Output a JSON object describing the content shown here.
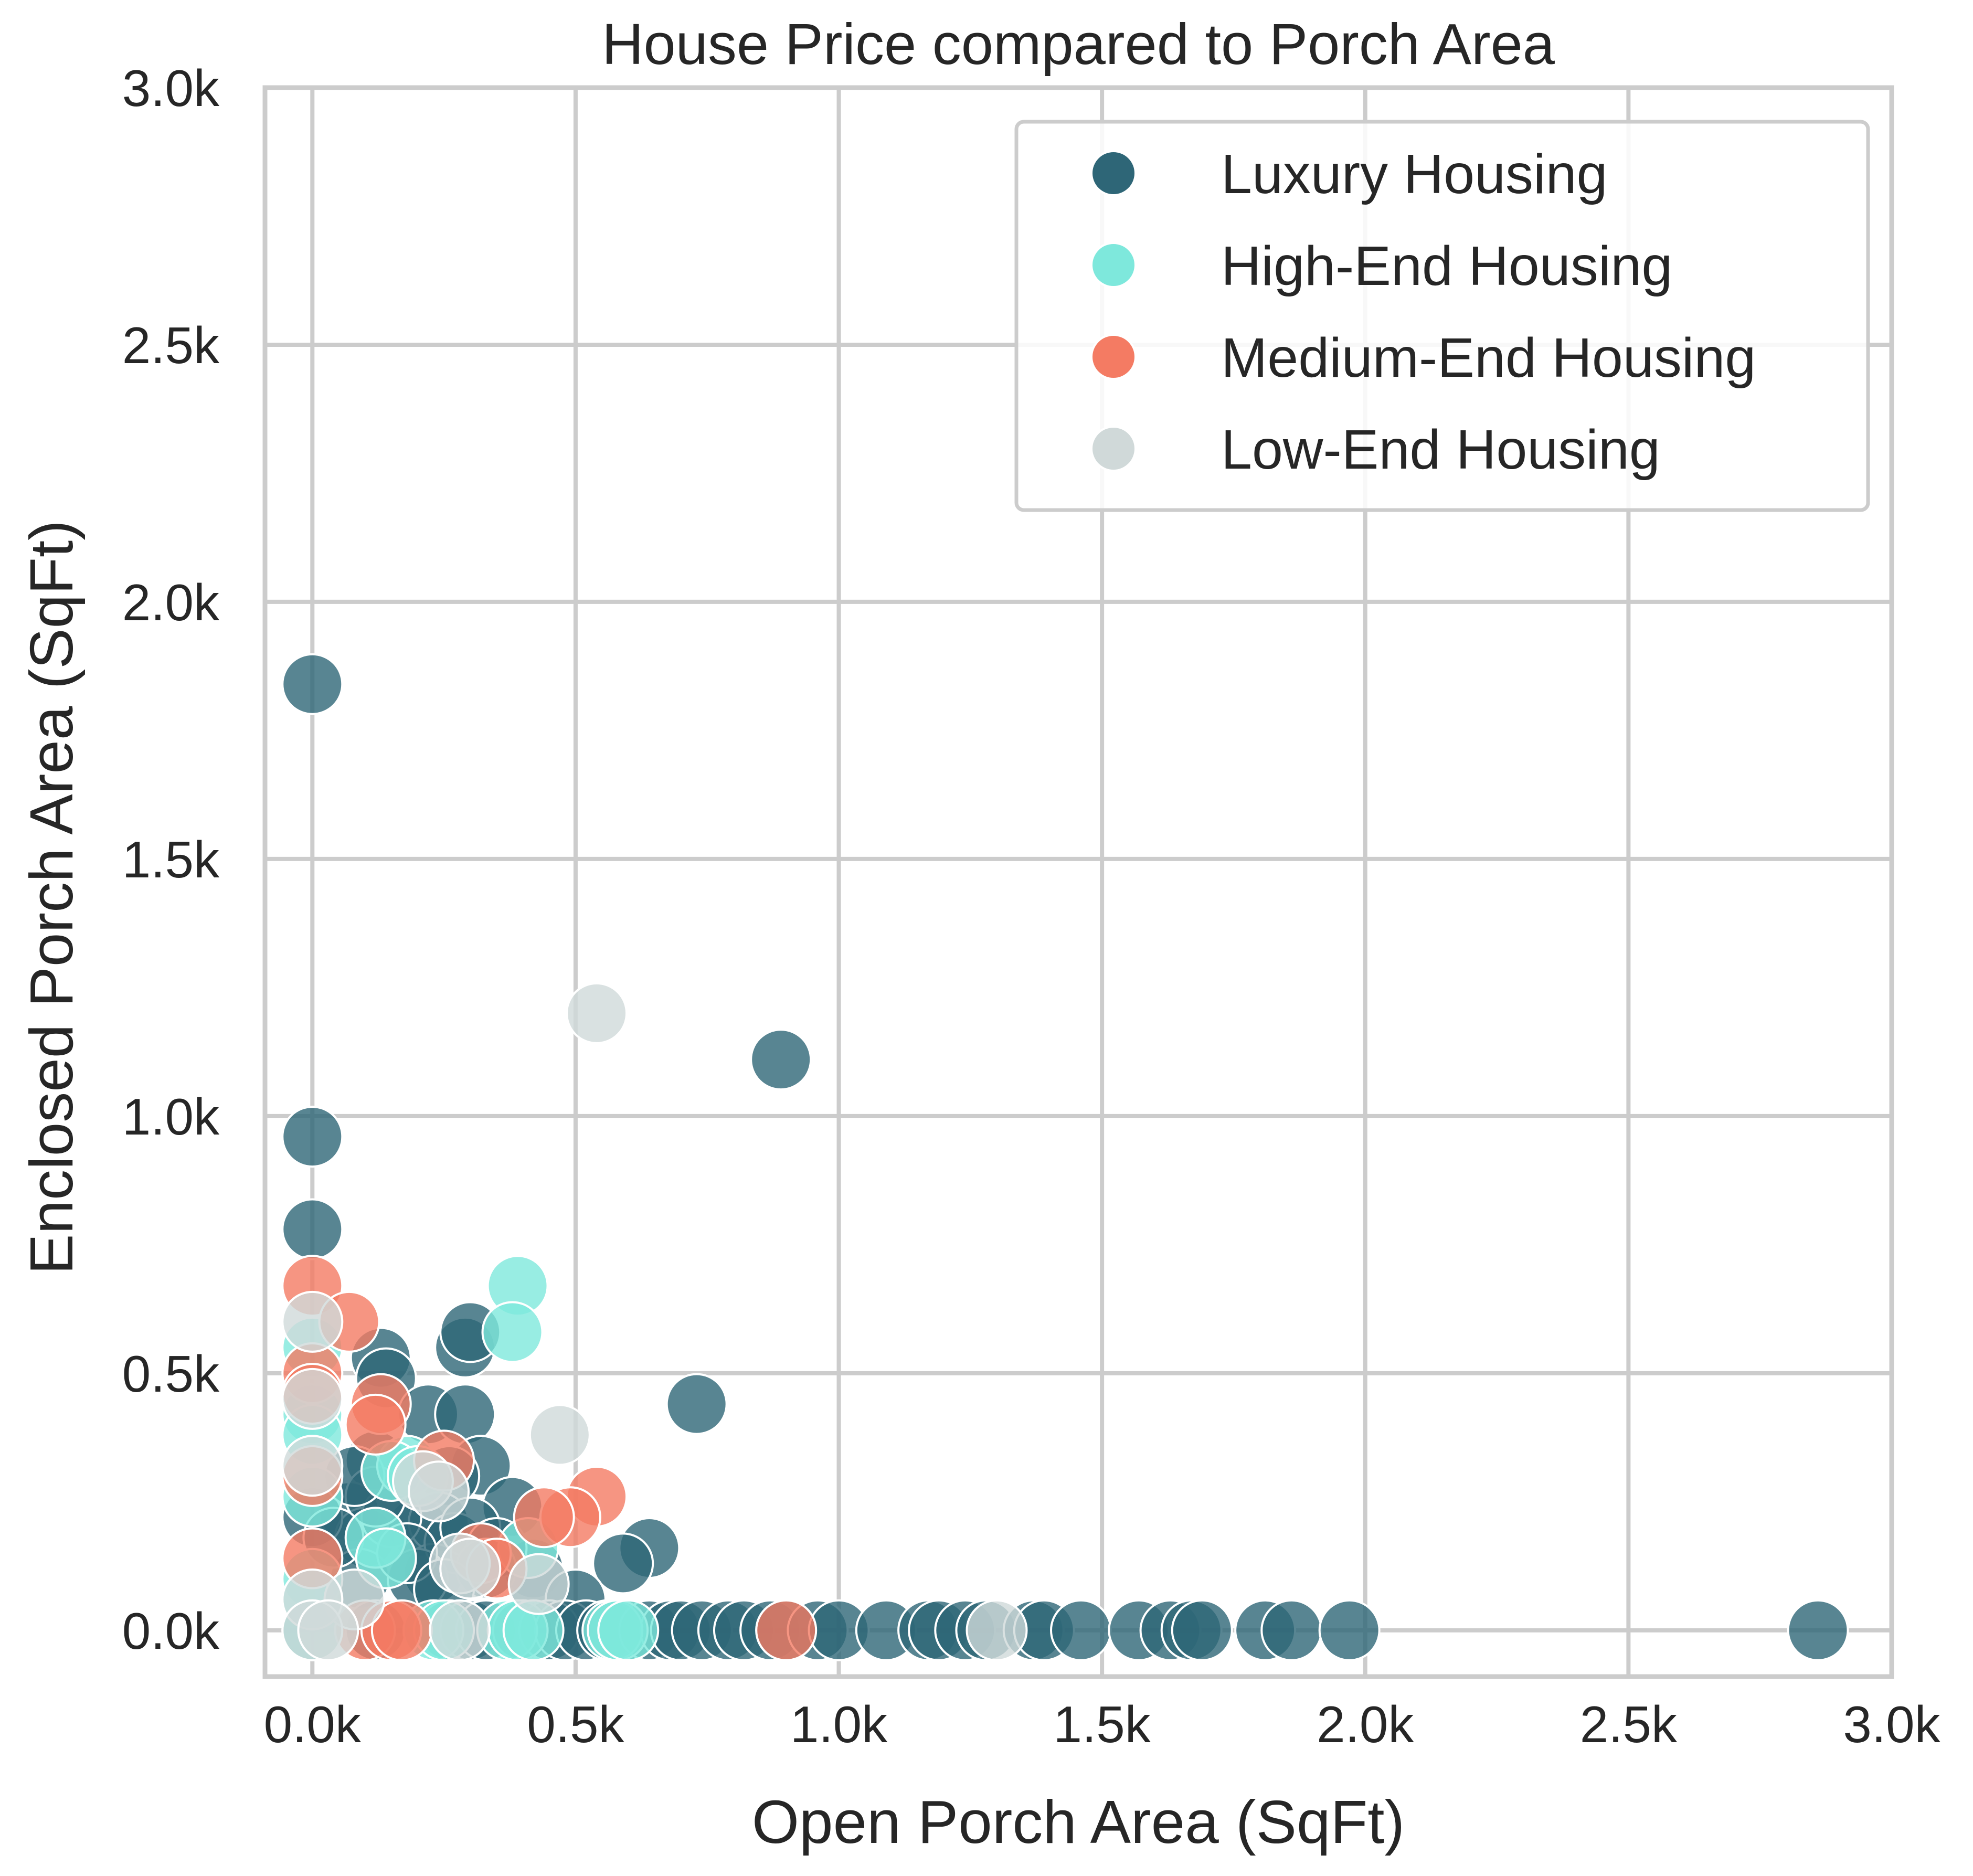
{
  "chart_data": {
    "type": "scatter",
    "title": "House Price compared to Porch Area",
    "xlabel": "Open Porch Area (SqFt)",
    "ylabel": "Enclosed Porch Area (SqFt)",
    "xlim": [
      -90,
      3000
    ],
    "ylim": [
      -90,
      3000
    ],
    "x_ticks": [
      0,
      500,
      1000,
      1500,
      2000,
      2500,
      3000
    ],
    "y_ticks": [
      0,
      500,
      1000,
      1500,
      2000,
      2500,
      3000
    ],
    "x_tick_labels": [
      "0.0k",
      "0.5k",
      "1.0k",
      "1.5k",
      "2.0k",
      "2.5k",
      "3.0k"
    ],
    "y_tick_labels": [
      "0.0k",
      "0.5k",
      "1.0k",
      "1.5k",
      "2.0k",
      "2.5k",
      "3.0k"
    ],
    "grid": true,
    "legend_position": "top-right",
    "series": [
      {
        "name": "Luxury Housing",
        "color": "#2e6677",
        "points": [
          [
            0,
            1840
          ],
          [
            0,
            960
          ],
          [
            0,
            780
          ],
          [
            890,
            1110
          ],
          [
            730,
            440
          ],
          [
            290,
            550
          ],
          [
            300,
            580
          ],
          [
            130,
            530
          ],
          [
            140,
            490
          ],
          [
            220,
            420
          ],
          [
            290,
            420
          ],
          [
            120,
            330
          ],
          [
            320,
            320
          ],
          [
            260,
            300
          ],
          [
            380,
            240
          ],
          [
            420,
            120
          ],
          [
            640,
            160
          ],
          [
            590,
            130
          ],
          [
            70,
            230
          ],
          [
            100,
            180
          ],
          [
            90,
            100
          ],
          [
            200,
            200
          ],
          [
            240,
            210
          ],
          [
            230,
            110
          ],
          [
            270,
            170
          ],
          [
            300,
            200
          ],
          [
            350,
            160
          ],
          [
            330,
            120
          ],
          [
            430,
            90
          ],
          [
            500,
            60
          ],
          [
            200,
            100
          ],
          [
            150,
            220
          ],
          [
            120,
            260
          ],
          [
            0,
            220
          ],
          [
            180,
            150
          ],
          [
            40,
            180
          ],
          [
            250,
            80
          ],
          [
            80,
            300
          ],
          [
            0,
            0
          ],
          [
            120,
            0
          ],
          [
            260,
            0
          ],
          [
            300,
            0
          ],
          [
            330,
            0
          ],
          [
            400,
            0
          ],
          [
            450,
            0
          ],
          [
            480,
            0
          ],
          [
            520,
            0
          ],
          [
            560,
            0
          ],
          [
            600,
            0
          ],
          [
            640,
            0
          ],
          [
            680,
            0
          ],
          [
            700,
            0
          ],
          [
            740,
            0
          ],
          [
            790,
            0
          ],
          [
            820,
            0
          ],
          [
            870,
            0
          ],
          [
            900,
            0
          ],
          [
            960,
            0
          ],
          [
            1000,
            0
          ],
          [
            1090,
            0
          ],
          [
            1170,
            0
          ],
          [
            1190,
            0
          ],
          [
            1240,
            0
          ],
          [
            1280,
            0
          ],
          [
            1370,
            0
          ],
          [
            1390,
            0
          ],
          [
            1460,
            0
          ],
          [
            1570,
            0
          ],
          [
            1630,
            0
          ],
          [
            1670,
            0
          ],
          [
            1690,
            0
          ],
          [
            1810,
            0
          ],
          [
            1860,
            0
          ],
          [
            1970,
            0
          ],
          [
            2860,
            0
          ]
        ]
      },
      {
        "name": "High-End Housing",
        "color": "#7ee8dc",
        "points": [
          [
            390,
            670
          ],
          [
            380,
            580
          ],
          [
            0,
            550
          ],
          [
            0,
            420
          ],
          [
            0,
            380
          ],
          [
            180,
            320
          ],
          [
            150,
            310
          ],
          [
            200,
            300
          ],
          [
            120,
            180
          ],
          [
            140,
            140
          ],
          [
            410,
            160
          ],
          [
            0,
            260
          ],
          [
            0,
            100
          ],
          [
            0,
            60
          ],
          [
            230,
            0
          ],
          [
            250,
            0
          ],
          [
            370,
            0
          ],
          [
            390,
            0
          ],
          [
            420,
            0
          ],
          [
            570,
            0
          ],
          [
            580,
            0
          ],
          [
            600,
            0
          ],
          [
            0,
            0
          ]
        ]
      },
      {
        "name": "Medium-End Housing",
        "color": "#f47b63",
        "points": [
          [
            0,
            670
          ],
          [
            70,
            600
          ],
          [
            0,
            500
          ],
          [
            0,
            460
          ],
          [
            130,
            440
          ],
          [
            120,
            400
          ],
          [
            0,
            300
          ],
          [
            250,
            330
          ],
          [
            540,
            260
          ],
          [
            490,
            220
          ],
          [
            440,
            220
          ],
          [
            320,
            150
          ],
          [
            350,
            120
          ],
          [
            0,
            140
          ],
          [
            100,
            0
          ],
          [
            150,
            0
          ],
          [
            170,
            0
          ],
          [
            900,
            0
          ]
        ]
      },
      {
        "name": "Low-End Housing",
        "color": "#d0d9d9",
        "points": [
          [
            540,
            1200
          ],
          [
            470,
            380
          ],
          [
            0,
            600
          ],
          [
            0,
            450
          ],
          [
            0,
            320
          ],
          [
            210,
            290
          ],
          [
            240,
            270
          ],
          [
            280,
            130
          ],
          [
            300,
            120
          ],
          [
            430,
            90
          ],
          [
            80,
            60
          ],
          [
            0,
            60
          ],
          [
            0,
            0
          ],
          [
            30,
            0
          ],
          [
            280,
            0
          ],
          [
            1300,
            0
          ]
        ]
      }
    ]
  }
}
